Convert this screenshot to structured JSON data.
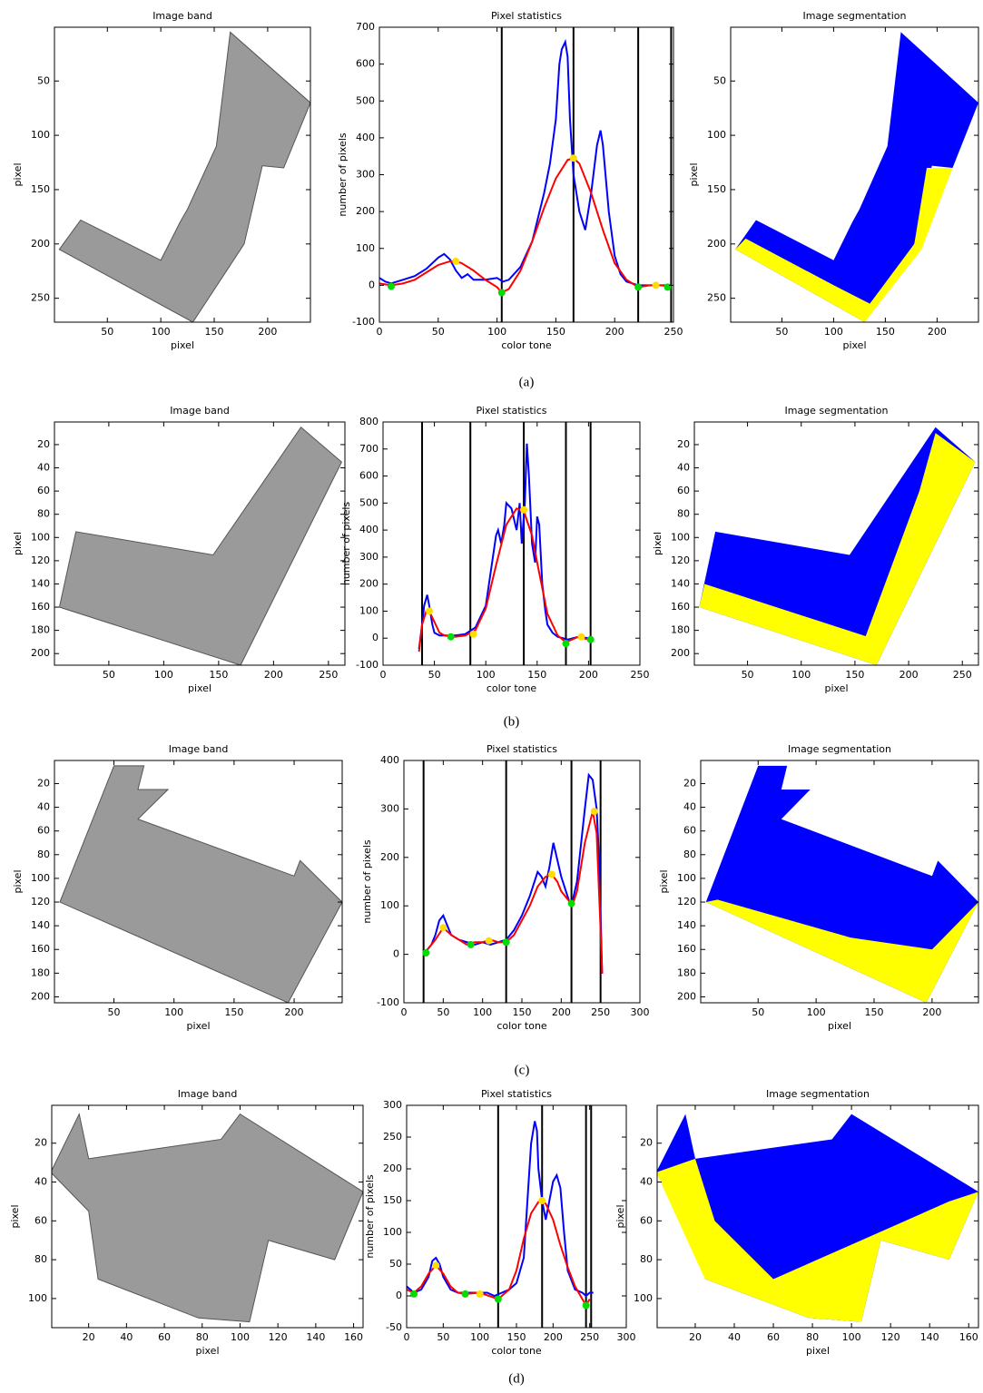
{
  "chart_data": [
    {
      "type": "image",
      "title": "Image band",
      "xlabel": "pixel",
      "ylabel": "pixel",
      "xlim": [
        0.5,
        240
      ],
      "ylim": [
        272,
        0.5
      ],
      "xticks": [
        50,
        100,
        150,
        200
      ],
      "yticks": [
        50,
        100,
        150,
        200,
        250
      ]
    },
    {
      "type": "line",
      "title": "Pixel statistics",
      "xlabel": "color tone",
      "ylabel": "number of pixels",
      "xlim": [
        0,
        250
      ],
      "ylim": [
        -100,
        700
      ],
      "xticks": [
        0,
        50,
        100,
        150,
        200,
        250
      ],
      "yticks": [
        -100,
        0,
        100,
        200,
        300,
        400,
        500,
        600,
        700
      ],
      "vlines": [
        104,
        165,
        220,
        248
      ],
      "series": [
        {
          "color": "#0000ff",
          "x": [
            0,
            5,
            10,
            20,
            30,
            40,
            50,
            55,
            60,
            65,
            70,
            75,
            80,
            90,
            100,
            105,
            110,
            120,
            130,
            140,
            145,
            150,
            153,
            155,
            158,
            160,
            162,
            165,
            170,
            175,
            180,
            185,
            188,
            190,
            195,
            200,
            205,
            210,
            215,
            220,
            230,
            240,
            248
          ],
          "values": [
            20,
            10,
            5,
            15,
            25,
            45,
            75,
            85,
            70,
            40,
            20,
            30,
            15,
            15,
            20,
            10,
            15,
            50,
            120,
            250,
            330,
            450,
            600,
            640,
            660,
            620,
            450,
            300,
            200,
            150,
            250,
            380,
            420,
            380,
            200,
            80,
            30,
            10,
            5,
            0,
            0,
            0,
            0
          ]
        },
        {
          "color": "#ff0000",
          "x": [
            0,
            10,
            20,
            30,
            40,
            50,
            60,
            65,
            70,
            80,
            90,
            100,
            104,
            110,
            120,
            130,
            140,
            150,
            160,
            165,
            170,
            180,
            190,
            200,
            210,
            220,
            230,
            240,
            248
          ],
          "values": [
            5,
            0,
            5,
            15,
            35,
            55,
            65,
            65,
            60,
            40,
            15,
            -5,
            -20,
            -10,
            40,
            120,
            210,
            290,
            340,
            345,
            330,
            250,
            150,
            60,
            15,
            -5,
            0,
            0,
            -5
          ]
        },
        {
          "color": "#ffdd00",
          "marker": true,
          "x": [
            65,
            165,
            235
          ],
          "values": [
            65,
            345,
            0
          ]
        },
        {
          "color": "#00dd00",
          "marker": true,
          "x": [
            10,
            104,
            220,
            245
          ],
          "values": [
            -3,
            -20,
            -5,
            -5
          ]
        }
      ]
    },
    {
      "type": "image",
      "title": "Image segmentation",
      "xlabel": "pixel",
      "ylabel": "pixel",
      "xlim": [
        0.5,
        240
      ],
      "ylim": [
        272,
        0.5
      ],
      "xticks": [
        50,
        100,
        150,
        200
      ],
      "yticks": [
        50,
        100,
        150,
        200,
        250
      ]
    },
    {
      "type": "image",
      "title": "Image band",
      "xlabel": "pixel",
      "ylabel": "pixel",
      "xlim": [
        0.5,
        265
      ],
      "ylim": [
        210,
        0.5
      ],
      "xticks": [
        50,
        100,
        150,
        200,
        250
      ],
      "yticks": [
        20,
        40,
        60,
        80,
        100,
        120,
        140,
        160,
        180,
        200
      ]
    },
    {
      "type": "line",
      "title": "Pixel statistics",
      "xlabel": "color tone",
      "ylabel": "number of pixels",
      "xlim": [
        0,
        250
      ],
      "ylim": [
        -100,
        800
      ],
      "xticks": [
        0,
        50,
        100,
        150,
        200,
        250
      ],
      "yticks": [
        -100,
        0,
        100,
        200,
        300,
        400,
        500,
        600,
        700,
        800
      ],
      "vlines": [
        38,
        85,
        137,
        178,
        202
      ],
      "series": [
        {
          "color": "#0000ff",
          "x": [
            35,
            38,
            40,
            43,
            45,
            48,
            50,
            55,
            60,
            70,
            80,
            90,
            100,
            105,
            110,
            112,
            115,
            118,
            120,
            125,
            130,
            133,
            135,
            138,
            140,
            142,
            145,
            148,
            150,
            152,
            155,
            158,
            160,
            165,
            170,
            175,
            180,
            190,
            200
          ],
          "values": [
            -40,
            50,
            120,
            160,
            120,
            50,
            20,
            10,
            10,
            10,
            15,
            40,
            120,
            250,
            380,
            400,
            350,
            420,
            500,
            480,
            400,
            500,
            350,
            500,
            720,
            600,
            350,
            280,
            450,
            420,
            200,
            100,
            50,
            20,
            5,
            0,
            -5,
            5,
            0
          ]
        },
        {
          "color": "#ff0000",
          "x": [
            35,
            38,
            42,
            45,
            50,
            55,
            60,
            70,
            80,
            90,
            100,
            110,
            120,
            130,
            137,
            145,
            150,
            160,
            170,
            178,
            190,
            200
          ],
          "values": [
            -50,
            50,
            100,
            100,
            60,
            20,
            10,
            5,
            10,
            30,
            110,
            270,
            420,
            480,
            470,
            380,
            280,
            90,
            10,
            -15,
            5,
            -5
          ]
        },
        {
          "color": "#ffdd00",
          "marker": true,
          "x": [
            45,
            88,
            137,
            193
          ],
          "values": [
            100,
            15,
            475,
            5
          ]
        },
        {
          "color": "#00dd00",
          "marker": true,
          "x": [
            66,
            178,
            202
          ],
          "values": [
            5,
            -20,
            -5
          ]
        }
      ]
    },
    {
      "type": "image",
      "title": "Image segmentation",
      "xlabel": "pixel",
      "ylabel": "pixel",
      "xlim": [
        0.5,
        265
      ],
      "ylim": [
        210,
        0.5
      ],
      "xticks": [
        50,
        100,
        150,
        200,
        250
      ],
      "yticks": [
        20,
        40,
        60,
        80,
        100,
        120,
        140,
        160,
        180,
        200
      ]
    },
    {
      "type": "image",
      "title": "Image band",
      "xlabel": "pixel",
      "ylabel": "pixel",
      "xlim": [
        0.5,
        240
      ],
      "ylim": [
        205,
        0.5
      ],
      "xticks": [
        50,
        100,
        150,
        200
      ],
      "yticks": [
        20,
        40,
        60,
        80,
        100,
        120,
        140,
        160,
        180,
        200
      ]
    },
    {
      "type": "line",
      "title": "Pixel statistics",
      "xlabel": "color tone",
      "ylabel": "number of pixels",
      "xlim": [
        0,
        300
      ],
      "ylim": [
        -100,
        400
      ],
      "xticks": [
        0,
        50,
        100,
        150,
        200,
        250,
        300
      ],
      "yticks": [
        -100,
        0,
        100,
        200,
        300,
        400
      ],
      "vlines": [
        25,
        130,
        213,
        250
      ],
      "series": [
        {
          "color": "#0000ff",
          "x": [
            25,
            30,
            35,
            40,
            45,
            50,
            55,
            60,
            70,
            80,
            90,
            100,
            110,
            120,
            130,
            140,
            150,
            160,
            170,
            175,
            180,
            185,
            190,
            200,
            210,
            213,
            220,
            230,
            235,
            240,
            245,
            248,
            250,
            252
          ],
          "values": [
            5,
            10,
            20,
            40,
            70,
            80,
            60,
            40,
            30,
            25,
            20,
            25,
            20,
            25,
            30,
            50,
            80,
            120,
            170,
            160,
            140,
            180,
            230,
            160,
            110,
            100,
            150,
            300,
            370,
            360,
            300,
            200,
            80,
            -40
          ]
        },
        {
          "color": "#ff0000",
          "x": [
            25,
            30,
            40,
            50,
            60,
            70,
            80,
            90,
            100,
            110,
            120,
            130,
            140,
            150,
            160,
            170,
            180,
            188,
            195,
            200,
            210,
            215,
            220,
            230,
            240,
            245,
            250,
            252
          ],
          "values": [
            5,
            10,
            30,
            55,
            40,
            30,
            20,
            25,
            25,
            30,
            25,
            25,
            40,
            70,
            100,
            140,
            160,
            165,
            150,
            130,
            110,
            105,
            130,
            230,
            295,
            250,
            50,
            -40
          ]
        },
        {
          "color": "#ffdd00",
          "marker": true,
          "x": [
            50,
            108,
            188,
            242
          ],
          "values": [
            55,
            28,
            165,
            295
          ]
        },
        {
          "color": "#00dd00",
          "marker": true,
          "x": [
            28,
            85,
            130,
            213
          ],
          "values": [
            3,
            20,
            25,
            105
          ]
        }
      ]
    },
    {
      "type": "image",
      "title": "Image segmentation",
      "xlabel": "pixel",
      "ylabel": "pixel",
      "xlim": [
        0.5,
        240
      ],
      "ylim": [
        205,
        0.5
      ],
      "xticks": [
        50,
        100,
        150,
        200
      ],
      "yticks": [
        20,
        40,
        60,
        80,
        100,
        120,
        140,
        160,
        180,
        200
      ]
    },
    {
      "type": "image",
      "title": "Image band",
      "xlabel": "pixel",
      "ylabel": "pixel",
      "xlim": [
        0.5,
        165
      ],
      "ylim": [
        115,
        0.5
      ],
      "xticks": [
        20,
        40,
        60,
        80,
        100,
        120,
        140,
        160
      ],
      "yticks": [
        20,
        40,
        60,
        80,
        100
      ]
    },
    {
      "type": "line",
      "title": "Pixel statistics",
      "xlabel": "color tone",
      "ylabel": "number of pixels",
      "xlim": [
        0,
        300
      ],
      "ylim": [
        -50,
        300
      ],
      "xticks": [
        0,
        50,
        100,
        150,
        200,
        250,
        300
      ],
      "yticks": [
        -50,
        0,
        50,
        100,
        150,
        200,
        250,
        300
      ],
      "vlines": [
        125,
        185,
        245,
        252
      ],
      "series": [
        {
          "color": "#0000ff",
          "x": [
            0,
            10,
            20,
            30,
            35,
            40,
            45,
            50,
            60,
            70,
            80,
            90,
            100,
            110,
            120,
            130,
            140,
            150,
            160,
            165,
            170,
            175,
            178,
            180,
            185,
            190,
            195,
            200,
            205,
            210,
            215,
            220,
            230,
            240,
            245,
            250,
            255
          ],
          "values": [
            15,
            5,
            10,
            30,
            55,
            60,
            50,
            30,
            10,
            5,
            5,
            5,
            5,
            5,
            0,
            5,
            10,
            20,
            60,
            150,
            240,
            275,
            260,
            200,
            150,
            120,
            150,
            180,
            190,
            170,
            100,
            40,
            10,
            5,
            0,
            5,
            5
          ]
        },
        {
          "color": "#ff0000",
          "x": [
            0,
            10,
            20,
            30,
            40,
            50,
            60,
            70,
            80,
            100,
            125,
            140,
            150,
            160,
            170,
            180,
            185,
            190,
            200,
            210,
            220,
            230,
            240,
            245,
            250
          ],
          "values": [
            10,
            5,
            15,
            35,
            48,
            35,
            15,
            5,
            3,
            5,
            -5,
            10,
            40,
            90,
            130,
            148,
            150,
            145,
            120,
            80,
            45,
            15,
            -5,
            -15,
            -5
          ]
        },
        {
          "color": "#ffdd00",
          "marker": true,
          "x": [
            40,
            100,
            185
          ],
          "values": [
            48,
            3,
            150
          ]
        },
        {
          "color": "#00dd00",
          "marker": true,
          "x": [
            10,
            80,
            125,
            245
          ],
          "values": [
            3,
            3,
            -5,
            -15
          ]
        }
      ]
    },
    {
      "type": "image",
      "title": "Image segmentation",
      "xlabel": "pixel",
      "ylabel": "pixel",
      "xlim": [
        0.5,
        165
      ],
      "ylim": [
        115,
        0.5
      ],
      "xticks": [
        20,
        40,
        60,
        80,
        100,
        120,
        140,
        160
      ],
      "yticks": [
        20,
        40,
        60,
        80,
        100
      ]
    }
  ],
  "captions": [
    "(a)",
    "(b)",
    "(c)",
    "(d)"
  ]
}
